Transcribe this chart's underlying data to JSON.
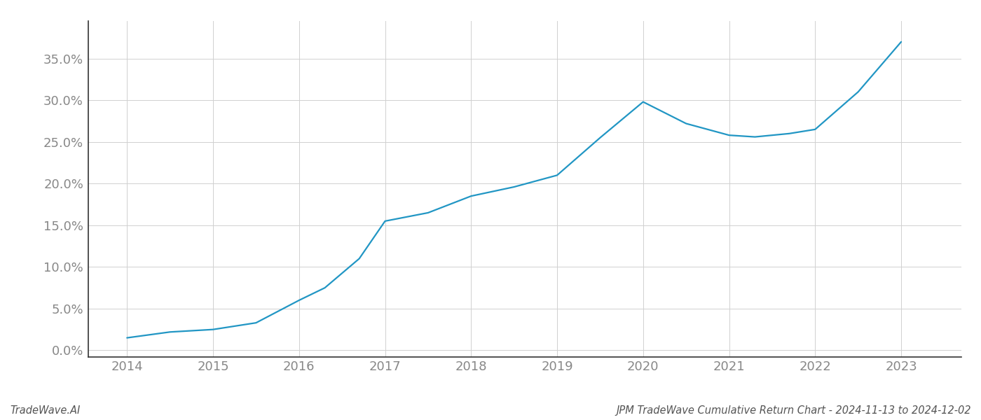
{
  "x": [
    2014.0,
    2014.5,
    2015.0,
    2015.5,
    2016.0,
    2016.3,
    2016.7,
    2017.0,
    2017.5,
    2018.0,
    2018.5,
    2019.0,
    2019.5,
    2020.0,
    2020.5,
    2021.0,
    2021.3,
    2021.7,
    2022.0,
    2022.5,
    2023.0
  ],
  "y": [
    0.015,
    0.022,
    0.025,
    0.033,
    0.06,
    0.075,
    0.11,
    0.155,
    0.165,
    0.185,
    0.196,
    0.21,
    0.255,
    0.298,
    0.272,
    0.258,
    0.256,
    0.26,
    0.265,
    0.31,
    0.37
  ],
  "line_color": "#2196c4",
  "line_width": 1.6,
  "title": "JPM TradeWave Cumulative Return Chart - 2024-11-13 to 2024-12-02",
  "watermark": "TradeWave.AI",
  "background_color": "#ffffff",
  "grid_color": "#d0d0d0",
  "axis_label_color": "#888888",
  "spine_color": "#333333",
  "bottom_spine_color": "#333333",
  "ylim": [
    -0.008,
    0.395
  ],
  "yticks": [
    0.0,
    0.05,
    0.1,
    0.15,
    0.2,
    0.25,
    0.3,
    0.35
  ],
  "xticks": [
    2014,
    2015,
    2016,
    2017,
    2018,
    2019,
    2020,
    2021,
    2022,
    2023
  ],
  "xlim": [
    2013.55,
    2023.7
  ],
  "tick_label_fontsize": 13,
  "footer_fontsize": 10.5
}
